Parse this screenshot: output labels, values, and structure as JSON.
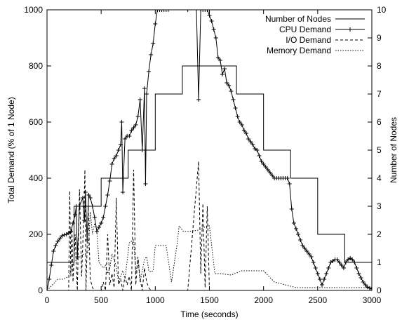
{
  "chart_data": {
    "type": "line",
    "xlabel": "Time (seconds)",
    "ylabel_left": "Total Demand (% of 1 Node)",
    "ylabel_right": "Number of Nodes",
    "xlim": [
      0,
      3000
    ],
    "ylim_left": [
      0,
      1000
    ],
    "ylim_right": [
      0,
      10
    ],
    "x_ticks": [
      0,
      500,
      1000,
      1500,
      2000,
      2500,
      3000
    ],
    "y_ticks_left": [
      0,
      200,
      400,
      600,
      800,
      1000
    ],
    "y_ticks_right": [
      0,
      1,
      2,
      3,
      4,
      5,
      6,
      7,
      8,
      9,
      10
    ],
    "legend_position": "top-right",
    "series": [
      {
        "name": "Number of Nodes",
        "axis": "right",
        "style": "solid",
        "step": true,
        "x": [
          0,
          250,
          250,
          500,
          500,
          750,
          750,
          1000,
          1000,
          1250,
          1250,
          1750,
          1750,
          2000,
          2000,
          2250,
          2250,
          2500,
          2500,
          2750,
          2750,
          3000
        ],
        "y": [
          1,
          1,
          3,
          3,
          4,
          4,
          5,
          5,
          7,
          7,
          8,
          8,
          7,
          7,
          5,
          5,
          4,
          4,
          2,
          2,
          1,
          1
        ]
      },
      {
        "name": "CPU Demand",
        "axis": "left",
        "style": "solid-plus",
        "x": [
          0,
          20,
          40,
          60,
          80,
          100,
          120,
          140,
          160,
          180,
          200,
          220,
          240,
          260,
          270,
          280,
          300,
          330,
          345,
          355,
          370,
          385,
          400,
          420,
          440,
          460,
          480,
          500,
          520,
          540,
          560,
          580,
          600,
          620,
          640,
          660,
          680,
          690,
          700,
          720,
          740,
          760,
          780,
          800,
          820,
          840,
          860,
          880,
          900,
          910,
          920,
          940,
          960,
          980,
          1000,
          1020,
          1040,
          1060,
          1080,
          1100,
          1120,
          1300,
          1380,
          1400,
          1420,
          1440,
          1460,
          1480,
          1500,
          1520,
          1540,
          1560,
          1580,
          1600,
          1620,
          1640,
          1660,
          1680,
          1700,
          1720,
          1740,
          1760,
          1780,
          1800,
          1820,
          1840,
          1860,
          1880,
          1900,
          1920,
          1940,
          1960,
          1980,
          2000,
          2020,
          2040,
          2060,
          2080,
          2100,
          2120,
          2140,
          2160,
          2180,
          2200,
          2220,
          2240,
          2260,
          2280,
          2300,
          2320,
          2340,
          2360,
          2380,
          2400,
          2420,
          2440,
          2460,
          2480,
          2500,
          2520,
          2540,
          2560,
          2580,
          2600,
          2620,
          2640,
          2660,
          2680,
          2700,
          2720,
          2740,
          2760,
          2780,
          2800,
          2820,
          2840,
          2860,
          2880,
          2900,
          2920,
          2940,
          2960,
          2980,
          3000
        ],
        "y": [
          0,
          40,
          90,
          140,
          160,
          175,
          185,
          195,
          198,
          200,
          205,
          210,
          240,
          270,
          300,
          120,
          300,
          330,
          250,
          350,
          180,
          340,
          330,
          300,
          260,
          210,
          225,
          240,
          260,
          300,
          340,
          390,
          450,
          470,
          480,
          500,
          520,
          600,
          350,
          540,
          550,
          550,
          570,
          580,
          590,
          620,
          680,
          500,
          720,
          380,
          700,
          780,
          840,
          880,
          950,
          1000,
          1000,
          1000,
          1000,
          1000,
          1000,
          1000,
          1000,
          680,
          1000,
          1000,
          1000,
          1000,
          980,
          960,
          930,
          900,
          830,
          820,
          770,
          790,
          740,
          730,
          710,
          680,
          650,
          620,
          600,
          590,
          570,
          560,
          540,
          530,
          520,
          505,
          500,
          480,
          460,
          450,
          440,
          430,
          420,
          410,
          400,
          400,
          400,
          400,
          400,
          400,
          400,
          380,
          290,
          240,
          220,
          200,
          180,
          160,
          150,
          140,
          130,
          120,
          100,
          80,
          60,
          40,
          20,
          40,
          60,
          80,
          100,
          105,
          110,
          110,
          100,
          90,
          80,
          100,
          110,
          115,
          110,
          100,
          80,
          60,
          45,
          30,
          20,
          12,
          8,
          5
        ]
      },
      {
        "name": "I/O Demand",
        "axis": "left",
        "style": "dashed",
        "x": [
          0,
          200,
          210,
          220,
          230,
          240,
          260,
          280,
          300,
          320,
          340,
          350,
          360,
          380,
          400,
          420,
          440,
          460,
          500,
          520,
          540,
          560,
          580,
          600,
          620,
          640,
          660,
          680,
          700,
          720,
          740,
          760,
          780,
          800,
          820,
          840,
          860,
          880,
          900,
          920,
          940,
          960,
          980,
          1000,
          1100,
          1200,
          1300,
          1400,
          1420,
          1440,
          1460,
          1480,
          1500,
          1520,
          1540,
          1560,
          3000
        ],
        "y": [
          0,
          0,
          355,
          50,
          220,
          30,
          200,
          0,
          360,
          50,
          270,
          430,
          0,
          300,
          40,
          10,
          0,
          0,
          0,
          30,
          0,
          200,
          20,
          60,
          10,
          330,
          20,
          40,
          0,
          50,
          20,
          50,
          0,
          430,
          20,
          120,
          40,
          0,
          80,
          30,
          10,
          0,
          0,
          0,
          0,
          0,
          0,
          460,
          60,
          310,
          10,
          300,
          0,
          0,
          0,
          0,
          0
        ]
      },
      {
        "name": "Memory Demand",
        "axis": "left",
        "style": "dotted",
        "x": [
          0,
          100,
          150,
          200,
          250,
          300,
          340,
          380,
          400,
          420,
          440,
          460,
          480,
          500,
          520,
          540,
          560,
          580,
          600,
          620,
          640,
          660,
          700,
          720,
          760,
          800,
          820,
          840,
          860,
          880,
          900,
          920,
          940,
          960,
          980,
          1000,
          1040,
          1100,
          1150,
          1200,
          1220,
          1260,
          1300,
          1400,
          1450,
          1500,
          1550,
          1600,
          1700,
          1800,
          1900,
          2000,
          2100,
          2200,
          2300,
          2400,
          2500,
          2600,
          2700,
          2800,
          2900,
          3000
        ],
        "y": [
          0,
          40,
          40,
          50,
          100,
          120,
          130,
          135,
          280,
          200,
          240,
          215,
          100,
          90,
          80,
          90,
          60,
          80,
          130,
          110,
          85,
          30,
          70,
          40,
          170,
          180,
          60,
          110,
          30,
          70,
          110,
          120,
          70,
          65,
          70,
          160,
          160,
          160,
          30,
          160,
          230,
          210,
          210,
          215,
          225,
          230,
          60,
          60,
          55,
          70,
          70,
          70,
          30,
          20,
          10,
          10,
          10,
          10,
          10,
          10,
          10,
          10
        ]
      }
    ]
  }
}
